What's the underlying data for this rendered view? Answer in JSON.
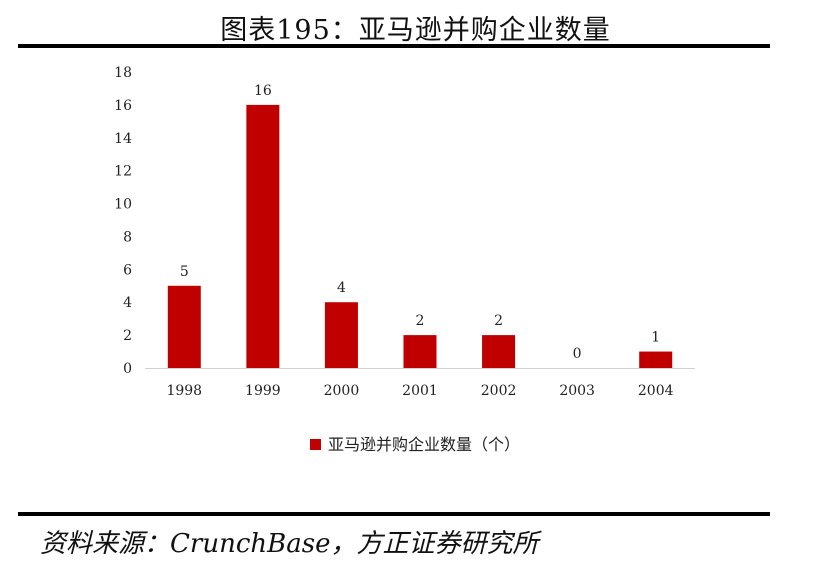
{
  "title": "图表195：亚马逊并购企业数量",
  "source": "资料来源：CrunchBase，方正证券研究所",
  "chart_data": {
    "type": "bar",
    "categories": [
      "1998",
      "1999",
      "2000",
      "2001",
      "2002",
      "2003",
      "2004"
    ],
    "series": [
      {
        "name": "亚马逊并购企业数量（个）",
        "values": [
          5,
          16,
          4,
          2,
          2,
          0,
          1
        ],
        "color": "#C00000"
      }
    ],
    "yticks": [
      0,
      2,
      4,
      6,
      8,
      10,
      12,
      14,
      16,
      18
    ],
    "ylim": [
      0,
      18
    ],
    "grid": false,
    "legend_position": "bottom-center"
  }
}
